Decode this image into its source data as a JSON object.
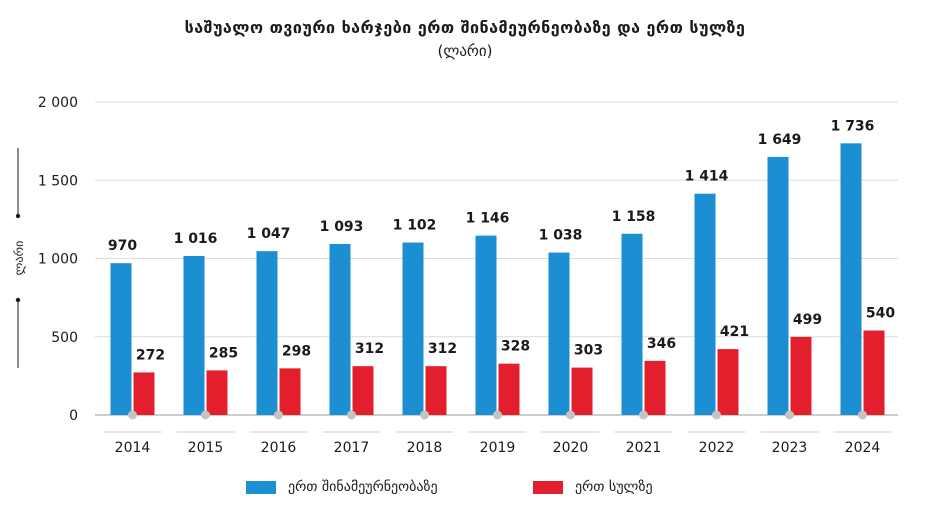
{
  "chart_data": {
    "type": "bar",
    "title": "საშუალო თვიური ხარჯები ერთ შინამეურნეობაზე და ერთ სულზე",
    "subtitle": "(ლარი)",
    "ylabel": "ლარი",
    "xlabel": "",
    "ylim": [
      0,
      2000
    ],
    "yticks": [
      0,
      500,
      1000,
      1500,
      2000
    ],
    "ytick_labels": [
      "0",
      "500",
      "1 000",
      "1 500",
      "2 000"
    ],
    "categories": [
      "2014",
      "2015",
      "2016",
      "2017",
      "2018",
      "2019",
      "2020",
      "2021",
      "2022",
      "2023",
      "2024"
    ],
    "grid": true,
    "legend_position": "bottom",
    "series": [
      {
        "name": "ერთ შინამეურნეობაზე",
        "color": "#1b8fd2",
        "values": [
          970,
          1016,
          1047,
          1093,
          1102,
          1146,
          1038,
          1158,
          1414,
          1649,
          1736
        ],
        "labels": [
          "970",
          "1 016",
          "1 047",
          "1 093",
          "1 102",
          "1 146",
          "1 038",
          "1 158",
          "1 414",
          "1 649",
          "1 736"
        ]
      },
      {
        "name": "ერთ სულზე",
        "color": "#e31e2d",
        "values": [
          272,
          285,
          298,
          312,
          312,
          328,
          303,
          346,
          421,
          499,
          540
        ],
        "labels": [
          "272",
          "285",
          "298",
          "312",
          "312",
          "328",
          "303",
          "346",
          "421",
          "499",
          "540"
        ]
      }
    ]
  }
}
